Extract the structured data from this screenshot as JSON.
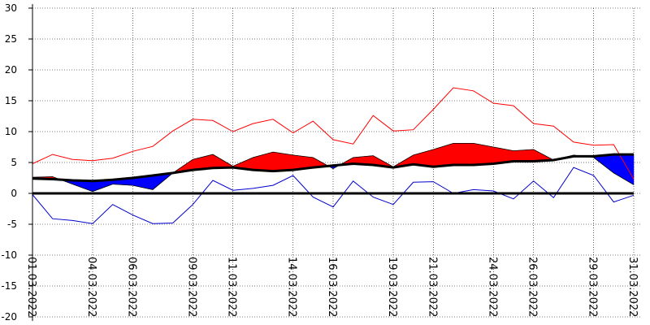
{
  "chart_data": {
    "type": "line",
    "title": "",
    "xlabel": "",
    "ylabel": "",
    "ylim": [
      -20,
      30
    ],
    "yticks": [
      30,
      25,
      20,
      15,
      10,
      5,
      0,
      -5,
      -10,
      -15,
      -20
    ],
    "grid": true,
    "x": [
      "01.03.2022",
      "02.03.2022",
      "03.03.2022",
      "04.03.2022",
      "05.03.2022",
      "06.03.2022",
      "07.03.2022",
      "08.03.2022",
      "09.03.2022",
      "10.03.2022",
      "11.03.2022",
      "12.03.2022",
      "13.03.2022",
      "14.03.2022",
      "15.03.2022",
      "16.03.2022",
      "17.03.2022",
      "18.03.2022",
      "19.03.2022",
      "20.03.2022",
      "21.03.2022",
      "22.03.2022",
      "23.03.2022",
      "24.03.2022",
      "25.03.2022",
      "26.03.2022",
      "27.03.2022",
      "28.03.2022",
      "29.03.2022",
      "30.03.2022",
      "31.03.2022"
    ],
    "xtick_labels": [
      "01.03.2022",
      "04.03.2022",
      "06.03.2022",
      "09.03.2022",
      "11.03.2022",
      "14.03.2022",
      "16.03.2022",
      "19.03.2022",
      "21.03.2022",
      "24.03.2022",
      "26.03.2022",
      "29.03.2022",
      "31.03.2022"
    ],
    "xtick_index": [
      0,
      3,
      5,
      8,
      10,
      13,
      15,
      18,
      20,
      23,
      25,
      28,
      30
    ],
    "series": [
      {
        "key": "max",
        "values": [
          4.8,
          6.3,
          5.5,
          5.3,
          5.7,
          6.8,
          7.6,
          10.1,
          12.0,
          11.8,
          10.0,
          11.3,
          12.0,
          9.8,
          11.7,
          8.7,
          8.0,
          12.6,
          10.1,
          10.3,
          13.6,
          17.1,
          16.6,
          14.6,
          14.2,
          11.3,
          10.9,
          8.3,
          7.8,
          7.9,
          2.3
        ]
      },
      {
        "key": "mean",
        "values": [
          2.6,
          2.7,
          1.5,
          0.3,
          1.5,
          1.3,
          0.6,
          3.3,
          5.5,
          6.3,
          4.4,
          5.8,
          6.7,
          6.2,
          5.8,
          4.0,
          5.8,
          6.1,
          4.3,
          6.2,
          7.1,
          8.1,
          8.1,
          7.5,
          6.9,
          7.1,
          5.4,
          6.2,
          5.8,
          3.3,
          1.4
        ]
      },
      {
        "key": "norm",
        "values": [
          2.4,
          2.3,
          2.1,
          2.0,
          2.2,
          2.5,
          2.9,
          3.3,
          3.8,
          4.1,
          4.2,
          3.8,
          3.6,
          3.8,
          4.2,
          4.5,
          4.8,
          4.6,
          4.2,
          4.7,
          4.3,
          4.6,
          4.6,
          4.8,
          5.2,
          5.2,
          5.4,
          6.0,
          6.0,
          6.3,
          6.3
        ]
      },
      {
        "key": "min",
        "values": [
          -0.2,
          -4.1,
          -4.4,
          -4.9,
          -1.8,
          -3.5,
          -4.9,
          -4.8,
          -1.8,
          2.1,
          0.5,
          0.8,
          1.3,
          2.9,
          -0.6,
          -2.2,
          2.0,
          -0.6,
          -1.8,
          1.8,
          1.9,
          0.0,
          0.6,
          0.4,
          -0.9,
          2.0,
          -0.7,
          4.2,
          2.9,
          -1.4,
          -0.3
        ]
      }
    ],
    "colors": {
      "max": "#ff0000",
      "min": "#0000cc",
      "above_norm": "#ff0000",
      "below_norm": "#0000ff",
      "norm": "#000000",
      "grid": "#000000",
      "zero": "#000000"
    }
  }
}
